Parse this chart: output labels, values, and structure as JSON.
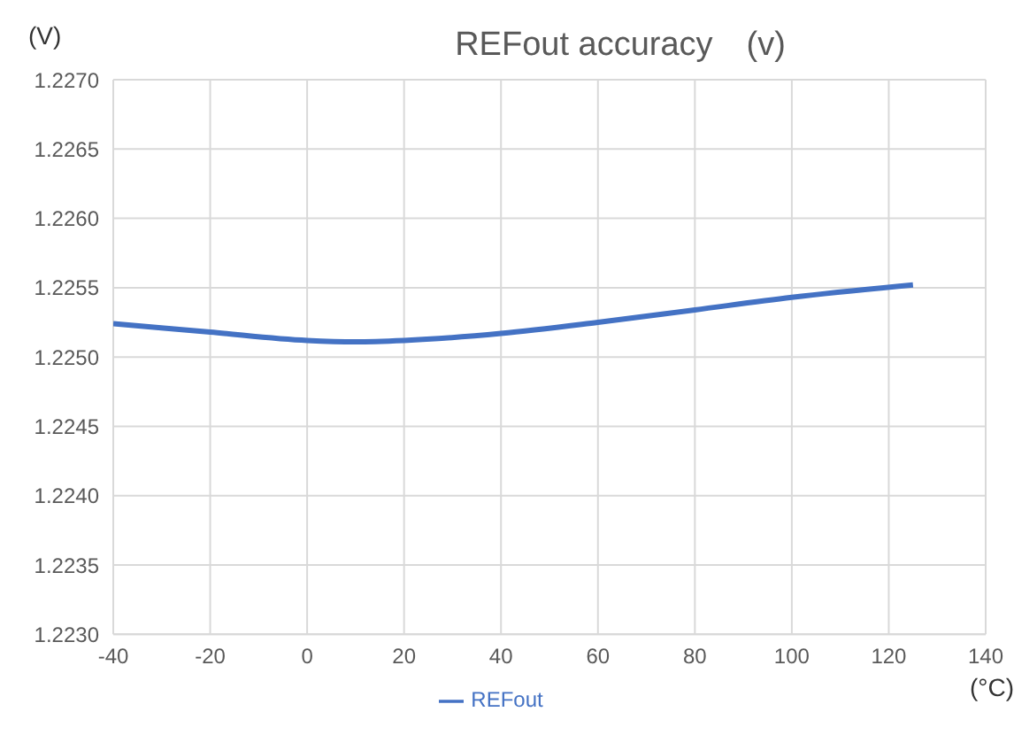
{
  "chart_data": {
    "type": "line",
    "title": "REFout accuracy　(v)",
    "xlabel": "(°C)",
    "ylabel": "(V)",
    "x": [
      -40,
      -20,
      0,
      10,
      20,
      40,
      60,
      80,
      100,
      125
    ],
    "series": [
      {
        "name": "REFout",
        "color": "#4472c4",
        "values": [
          1.22524,
          1.22518,
          1.22512,
          1.22511,
          1.22512,
          1.22517,
          1.22525,
          1.22534,
          1.22543,
          1.22552
        ]
      }
    ],
    "xlim": [
      -40,
      140
    ],
    "xticks": [
      -40,
      -20,
      0,
      20,
      40,
      60,
      80,
      100,
      120,
      140
    ],
    "ylim": [
      1.223,
      1.227
    ],
    "yticks": [
      {
        "value": 1.223,
        "label": "1.2230"
      },
      {
        "value": 1.2235,
        "label": "1.2235"
      },
      {
        "value": 1.224,
        "label": "1.2240"
      },
      {
        "value": 1.2245,
        "label": "1.2245"
      },
      {
        "value": 1.225,
        "label": "1.2250"
      },
      {
        "value": 1.2255,
        "label": "1.2255"
      },
      {
        "value": 1.226,
        "label": "1.2260"
      },
      {
        "value": 1.2265,
        "label": "1.2265"
      },
      {
        "value": 1.227,
        "label": "1.2270"
      }
    ],
    "grid": true,
    "legend": "bottom",
    "marker": "none",
    "line_style": "solid"
  }
}
